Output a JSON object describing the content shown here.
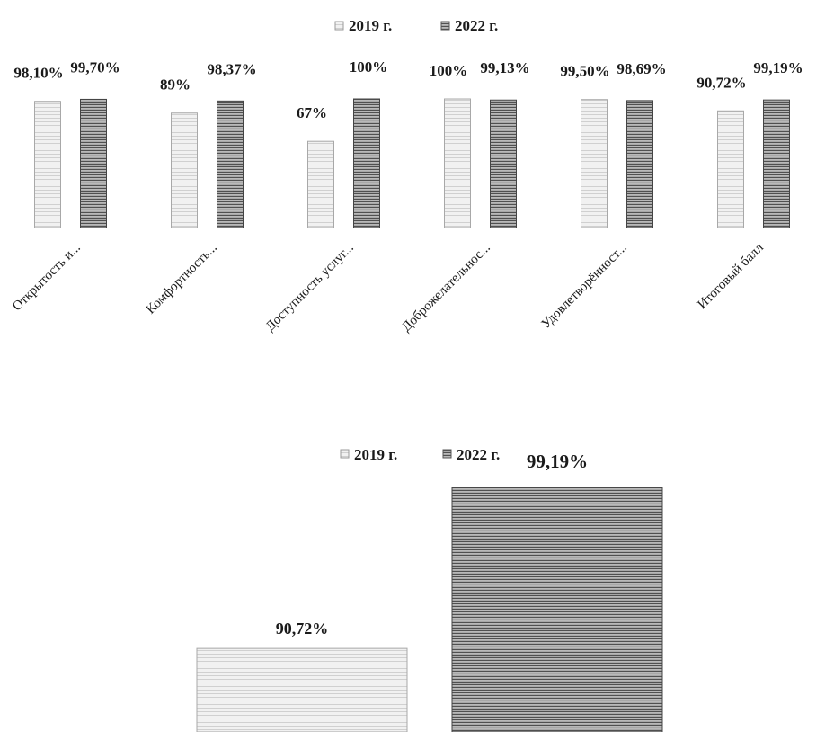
{
  "chart_data": [
    {
      "type": "bar",
      "categories": [
        "Открытость и...",
        "Комфортность...",
        "Доступность услуг...",
        "Доброжелательнос...",
        "Удовлетворённост...",
        "Итоговый балл"
      ],
      "series": [
        {
          "name": "2019 г.",
          "values": [
            98.1,
            89,
            67,
            100,
            99.5,
            90.72
          ],
          "labels": [
            "98,10%",
            "89%",
            "67%",
            "100%",
            "99,50%",
            "90,72%"
          ]
        },
        {
          "name": "2022 г.",
          "values": [
            99.7,
            98.37,
            100,
            99.13,
            98.69,
            99.19
          ],
          "labels": [
            "99,70%",
            "98,37%",
            "100%",
            "99,13%",
            "98,69%",
            "99,19%"
          ]
        }
      ],
      "ylim": [
        0,
        100
      ],
      "grid": false,
      "legend": "top-center"
    },
    {
      "type": "bar",
      "categories": [
        ""
      ],
      "series": [
        {
          "name": "2019 г.",
          "values": [
            90.72
          ],
          "labels": [
            "90,72%"
          ]
        },
        {
          "name": "2022 г.",
          "values": [
            99.19
          ],
          "labels": [
            "99,19%"
          ]
        }
      ],
      "grid": false,
      "legend": "top-center"
    }
  ],
  "colors": {
    "series_2019": "#ededed",
    "series_2022": "#6f6f6f",
    "stroke": "#9a9a9a"
  }
}
